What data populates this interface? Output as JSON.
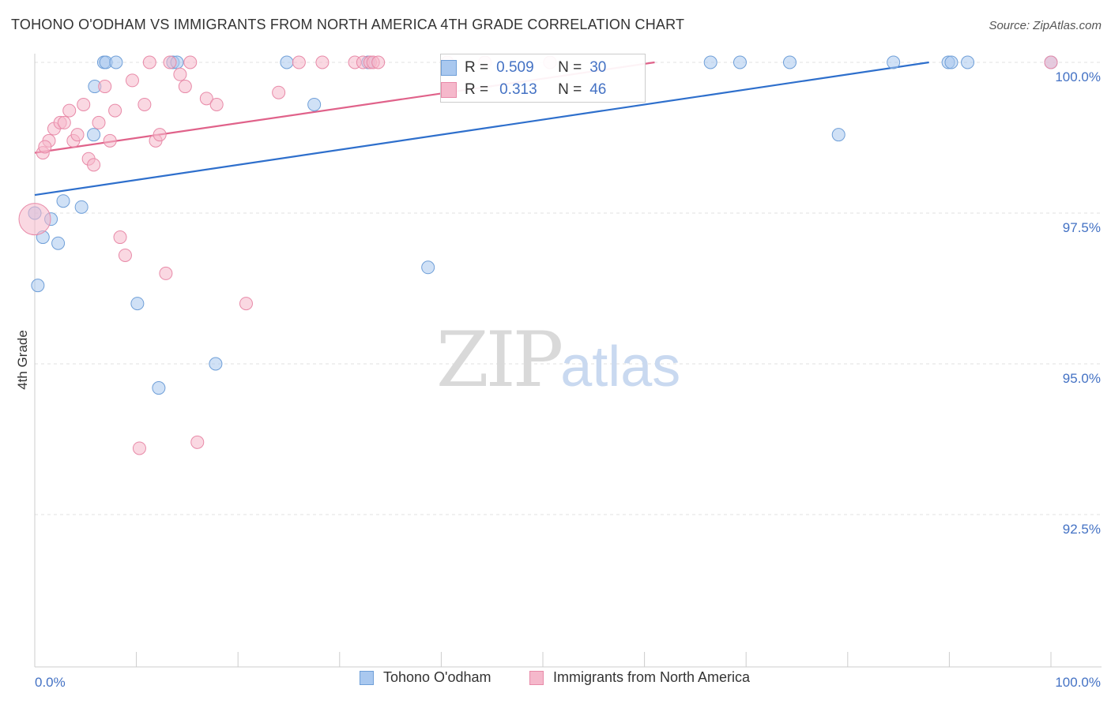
{
  "header": {
    "title": "TOHONO O'ODHAM VS IMMIGRANTS FROM NORTH AMERICA 4TH GRADE CORRELATION CHART",
    "source": "Source: ZipAtlas.com"
  },
  "watermark": {
    "zip": "ZIP",
    "atlas": "atlas"
  },
  "stats": {
    "row1": {
      "r_label": "R =",
      "r_value": "0.509",
      "n_label": "N =",
      "n_value": "30"
    },
    "row2": {
      "r_label": "R =",
      "r_value": "0.313",
      "n_label": "N =",
      "n_value": "46"
    }
  },
  "legend": {
    "series1": "Tohono O'odham",
    "series2": "Immigrants from North America"
  },
  "colors": {
    "blue_fill": "#a9c8ef",
    "blue_stroke": "#6f9fd8",
    "blue_line": "#2e6fcc",
    "pink_fill": "#f5b8cb",
    "pink_stroke": "#e88aa8",
    "pink_line": "#e0628a",
    "tick_text": "#4472c4",
    "grid": "#e0e0e0"
  },
  "chart_data": {
    "type": "scatter",
    "title": "TOHONO O'ODHAM VS IMMIGRANTS FROM NORTH AMERICA 4TH GRADE CORRELATION CHART",
    "ylabel": "4th Grade",
    "xlabel": "",
    "xlim": [
      0,
      100
    ],
    "ylim": [
      90.2,
      100.2
    ],
    "x_tick_labels": [
      "0.0%",
      "100.0%"
    ],
    "y_ticks": [
      {
        "value": 100.0,
        "label": "100.0%"
      },
      {
        "value": 97.5,
        "label": "97.5%"
      },
      {
        "value": 95.0,
        "label": "95.0%"
      },
      {
        "value": 92.5,
        "label": "92.5%"
      }
    ],
    "grid": true,
    "series": [
      {
        "name": "Tohono O'odham",
        "color": "#a9c8ef",
        "trend": {
          "x": [
            0,
            100
          ],
          "y": [
            97.8,
            100.3
          ]
        },
        "points": [
          [
            0.3,
            96.3
          ],
          [
            0.8,
            97.1
          ],
          [
            1.6,
            97.4
          ],
          [
            2.3,
            97.0
          ],
          [
            2.8,
            97.7
          ],
          [
            4.6,
            97.6
          ],
          [
            5.9,
            99.6
          ],
          [
            5.8,
            98.8
          ],
          [
            6.8,
            100.0
          ],
          [
            7.0,
            100.0
          ],
          [
            8.0,
            100.0
          ],
          [
            10.1,
            96.0
          ],
          [
            12.2,
            94.6
          ],
          [
            13.6,
            100.0
          ],
          [
            14.0,
            100.0
          ],
          [
            17.8,
            95.0
          ],
          [
            24.8,
            100.0
          ],
          [
            27.5,
            99.3
          ],
          [
            32.8,
            100.0
          ],
          [
            38.7,
            96.6
          ],
          [
            66.5,
            100.0
          ],
          [
            69.4,
            100.0
          ],
          [
            74.3,
            100.0
          ],
          [
            79.1,
            98.8
          ],
          [
            84.5,
            100.0
          ],
          [
            89.9,
            100.0
          ],
          [
            90.2,
            100.0
          ],
          [
            91.8,
            100.0
          ],
          [
            100.0,
            100.0
          ],
          [
            0.0,
            97.5
          ]
        ]
      },
      {
        "name": "Immigrants from North America",
        "color": "#f5b8cb",
        "trend": {
          "x": [
            0,
            61
          ],
          "y": [
            98.5,
            100.0
          ]
        },
        "points": [
          [
            0.0,
            97.4
          ],
          [
            0.8,
            98.5
          ],
          [
            1.4,
            98.7
          ],
          [
            1.9,
            98.9
          ],
          [
            2.5,
            99.0
          ],
          [
            2.9,
            99.0
          ],
          [
            3.4,
            99.2
          ],
          [
            3.8,
            98.7
          ],
          [
            4.2,
            98.8
          ],
          [
            4.8,
            99.3
          ],
          [
            5.3,
            98.4
          ],
          [
            5.8,
            98.3
          ],
          [
            6.3,
            99.0
          ],
          [
            6.9,
            99.6
          ],
          [
            7.4,
            98.7
          ],
          [
            7.9,
            99.2
          ],
          [
            8.4,
            97.1
          ],
          [
            8.9,
            96.8
          ],
          [
            9.6,
            99.7
          ],
          [
            10.3,
            93.6
          ],
          [
            10.8,
            99.3
          ],
          [
            11.3,
            100.0
          ],
          [
            11.9,
            98.7
          ],
          [
            12.3,
            98.8
          ],
          [
            12.9,
            96.5
          ],
          [
            13.3,
            100.0
          ],
          [
            14.3,
            99.8
          ],
          [
            14.8,
            99.6
          ],
          [
            15.3,
            100.0
          ],
          [
            16.0,
            93.7
          ],
          [
            16.9,
            99.4
          ],
          [
            17.9,
            99.3
          ],
          [
            20.8,
            96.0
          ],
          [
            24.0,
            99.5
          ],
          [
            26.0,
            100.0
          ],
          [
            28.3,
            100.0
          ],
          [
            31.5,
            100.0
          ],
          [
            32.3,
            100.0
          ],
          [
            33.0,
            100.0
          ],
          [
            33.3,
            100.0
          ],
          [
            33.8,
            100.0
          ],
          [
            40.6,
            100.0
          ],
          [
            44.3,
            100.0
          ],
          [
            50.7,
            100.0
          ],
          [
            100.0,
            100.0
          ],
          [
            1.0,
            98.6
          ]
        ]
      }
    ]
  }
}
